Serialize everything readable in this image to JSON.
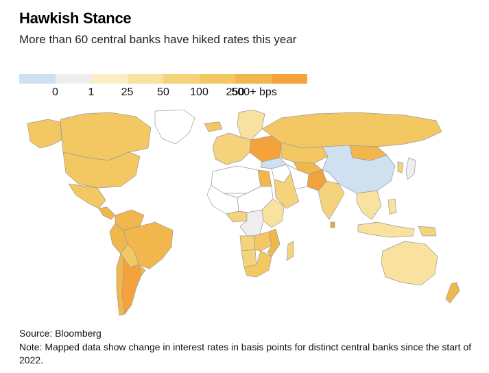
{
  "title": "Hawkish Stance",
  "subtitle": "More than 60 central banks have hiked rates this year",
  "legend": {
    "colors": [
      "#cfe0f0",
      "#eeeeee",
      "#faeec4",
      "#f9e1a0",
      "#f5d27c",
      "#f3c862",
      "#f2b74c",
      "#f4a33c"
    ],
    "labels": [
      "0",
      "1",
      "25",
      "50",
      "100",
      "250",
      "500+ bps"
    ]
  },
  "colors": {
    "border": "#9a9a9a",
    "no_data": "#ffffff"
  },
  "regions": [
    {
      "name": "Canada",
      "color": "#f3c862"
    },
    {
      "name": "Alaska",
      "color": "#f3c862"
    },
    {
      "name": "Greenland",
      "color": "#ffffff"
    },
    {
      "name": "United States",
      "color": "#f3c862"
    },
    {
      "name": "Mexico",
      "color": "#f3c862"
    },
    {
      "name": "Central America",
      "color": "#f2b74c"
    },
    {
      "name": "Colombia & Venezuela",
      "color": "#f2b74c"
    },
    {
      "name": "Brazil",
      "color": "#f2b74c"
    },
    {
      "name": "Peru",
      "color": "#f2b74c"
    },
    {
      "name": "Bolivia & Paraguay",
      "color": "#f3c862"
    },
    {
      "name": "Chile",
      "color": "#f2b74c"
    },
    {
      "name": "Argentina",
      "color": "#f4a33c"
    },
    {
      "name": "Uruguay",
      "color": "#f2b74c"
    },
    {
      "name": "Iceland",
      "color": "#f3c862"
    },
    {
      "name": "Scandinavia",
      "color": "#f9e1a0"
    },
    {
      "name": "Western Europe",
      "color": "#f5d27c"
    },
    {
      "name": "Eastern Europe",
      "color": "#f4a33c"
    },
    {
      "name": "Russia",
      "color": "#f3c862"
    },
    {
      "name": "Turkey",
      "color": "#cfe0f0"
    },
    {
      "name": "Kazakhstan",
      "color": "#f3c862"
    },
    {
      "name": "Central Asia",
      "color": "#f2b74c"
    },
    {
      "name": "China",
      "color": "#cfe0f0"
    },
    {
      "name": "Mongolia",
      "color": "#f2b74c"
    },
    {
      "name": "Japan",
      "color": "#eeeeee"
    },
    {
      "name": "Korea",
      "color": "#f5d27c"
    },
    {
      "name": "Middle East",
      "color": "#ffffff"
    },
    {
      "name": "Saudi Arabia",
      "color": "#f5d27c"
    },
    {
      "name": "Iran",
      "color": "#ffffff"
    },
    {
      "name": "Pakistan",
      "color": "#f4a33c"
    },
    {
      "name": "India",
      "color": "#f5d27c"
    },
    {
      "name": "Sri Lanka",
      "color": "#f4a33c"
    },
    {
      "name": "Southeast Asia",
      "color": "#f9e1a0"
    },
    {
      "name": "Indonesia",
      "color": "#f9e1a0"
    },
    {
      "name": "Philippines",
      "color": "#f9e1a0"
    },
    {
      "name": "Papua New Guinea",
      "color": "#f5d27c"
    },
    {
      "name": "Australia",
      "color": "#f9e1a0"
    },
    {
      "name": "New Zealand",
      "color": "#f2b74c"
    },
    {
      "name": "North Africa",
      "color": "#ffffff"
    },
    {
      "name": "Egypt",
      "color": "#f2b74c"
    },
    {
      "name": "West Africa",
      "color": "#ffffff"
    },
    {
      "name": "Ghana & Nigeria",
      "color": "#f5d27c"
    },
    {
      "name": "Central Africa",
      "color": "#ffffff"
    },
    {
      "name": "East Africa",
      "color": "#f9e1a0"
    },
    {
      "name": "Congo",
      "color": "#eeeeee"
    },
    {
      "name": "Angola",
      "color": "#f5d27c"
    },
    {
      "name": "Zambia & Zimbabwe",
      "color": "#f3c862"
    },
    {
      "name": "Mozambique",
      "color": "#f2b74c"
    },
    {
      "name": "Namibia",
      "color": "#f5d27c"
    },
    {
      "name": "South Africa",
      "color": "#f3c862"
    },
    {
      "name": "Madagascar",
      "color": "#f5d27c"
    }
  ],
  "source": "Source: Bloomberg",
  "note": "Note: Mapped data show change in interest rates in basis points for distinct central banks since the start of 2022."
}
